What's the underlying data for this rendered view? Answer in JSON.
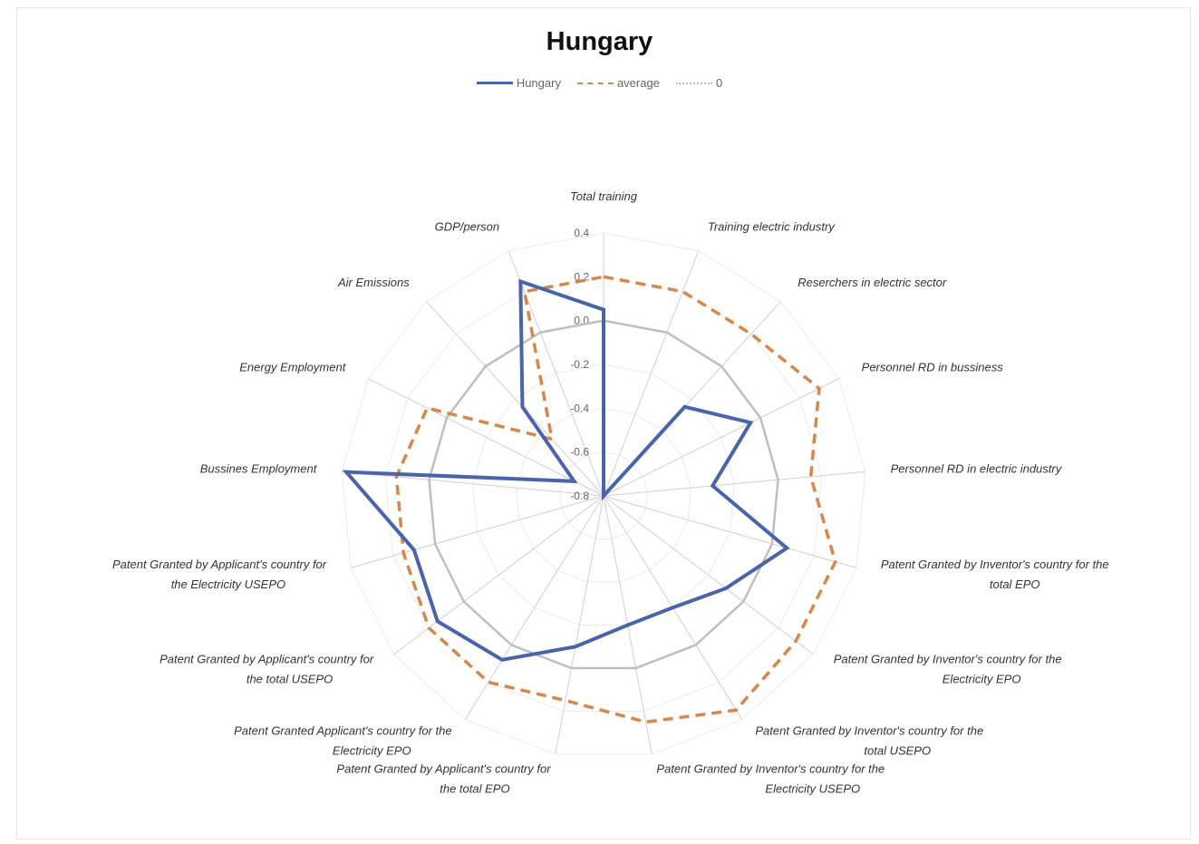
{
  "chart_data": {
    "type": "radar",
    "title": "Hungary",
    "axes": [
      "Total training",
      "Training electric industry",
      "Reserchers in electric sector",
      "Personnel RD in bussiness",
      "Personnel RD in electric industry",
      "Patent Granted by Inventor's country for the total EPO",
      "Patent Granted by Inventor's country for the Electricity EPO",
      "Patent Granted by Inventor's country for the total USEPO",
      "Patent Granted by Inventor's country for the Electricity USEPO",
      "Patent Granted by Applicant's country for the total EPO",
      "Patent Granted Applicant's country for the Electricity EPO",
      "Patent Granted by Applicant's country for the total USEPO",
      "Patent Granted by Applicant's country for the Electricity USEPO",
      "Bussines Employment",
      "Energy Employment",
      "Air Emissions",
      "GDP/person"
    ],
    "axis_label_lines": [
      [
        "Total training"
      ],
      [
        "Training electric industry"
      ],
      [
        "Reserchers in electric sector"
      ],
      [
        "Personnel RD in bussiness"
      ],
      [
        "Personnel RD in electric industry"
      ],
      [
        "Patent Granted by Inventor's country for the",
        "total EPO"
      ],
      [
        "Patent Granted by Inventor's country for the",
        "Electricity EPO"
      ],
      [
        "Patent Granted by Inventor's country for the",
        "total USEPO"
      ],
      [
        "Patent Granted by Inventor's country for the",
        "Electricity USEPO"
      ],
      [
        "Patent Granted by Applicant's country for",
        "the total EPO"
      ],
      [
        "Patent Granted Applicant's country for the",
        "Electricity EPO"
      ],
      [
        "Patent Granted by Applicant's country for",
        "the total USEPO"
      ],
      [
        "Patent Granted by Applicant's country for",
        "the Electricity USEPO"
      ],
      [
        "Bussines Employment"
      ],
      [
        "Energy Employment"
      ],
      [
        "Air Emissions"
      ],
      [
        "GDP/person"
      ]
    ],
    "rlim": [
      -0.8,
      0.4
    ],
    "ticks": [
      0.4,
      0.2,
      0.0,
      -0.2,
      -0.4,
      -0.6,
      -0.8
    ],
    "tick_labels": [
      "0.4",
      "0.2",
      "0.0",
      "-0.2",
      "-0.4",
      "-0.6",
      "-0.8"
    ],
    "series": [
      {
        "name": "Hungary",
        "color": "#4a64ac",
        "style": "solid",
        "values": [
          0.05,
          -0.8,
          -0.25,
          -0.05,
          -0.3,
          0.07,
          -0.1,
          -0.2,
          -0.2,
          -0.1,
          0.08,
          0.15,
          0.1,
          0.38,
          -0.65,
          -0.25,
          0.25
        ]
      },
      {
        "name": "average",
        "color": "#d6884a",
        "style": "dashed",
        "values": [
          0.2,
          0.2,
          0.2,
          0.3,
          0.15,
          0.3,
          0.3,
          0.35,
          0.25,
          0.15,
          0.2,
          0.2,
          0.15,
          0.15,
          0.1,
          -0.45,
          0.2
        ]
      },
      {
        "name": "0",
        "color": "#bfbfbf",
        "style": "dotted",
        "values": [
          0,
          0,
          0,
          0,
          0,
          0,
          0,
          0,
          0,
          0,
          0,
          0,
          0,
          0,
          0,
          0,
          0
        ]
      }
    ],
    "legend_position": "top",
    "grid": true
  }
}
